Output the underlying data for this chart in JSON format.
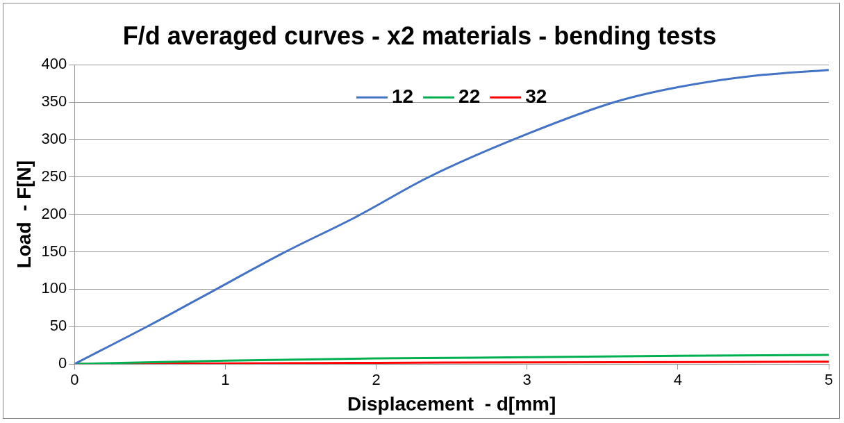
{
  "chart_data": {
    "type": "line",
    "title": "F/d averaged curves - x2 materials - bending tests",
    "xlabel": "Displacement  - d[mm]",
    "ylabel": "Load  - F[N]",
    "xlim": [
      0,
      5
    ],
    "xticks": [
      0,
      1,
      2,
      3,
      4,
      5
    ],
    "ylim": [
      0,
      400
    ],
    "yticks": [
      0,
      50,
      100,
      150,
      200,
      250,
      300,
      350,
      400
    ],
    "grid": "y",
    "legend": "top",
    "marker": "none",
    "line_style": "solid",
    "series": [
      {
        "name": "12",
        "color": "#4472c4",
        "x": [
          0,
          0.5,
          0.84,
          1.38,
          1.87,
          2.35,
          2.91,
          3.58,
          4,
          4.5,
          5
        ],
        "values": [
          0,
          52,
          89,
          148,
          197,
          250,
          300,
          350,
          370,
          385,
          393
        ]
      },
      {
        "name": "22",
        "color": "#00b050",
        "x": [
          0,
          1,
          2,
          3,
          4,
          5
        ],
        "values": [
          0,
          4.4,
          7.4,
          9,
          11,
          12
        ]
      },
      {
        "name": "32",
        "color": "#ff0000",
        "x": [
          0,
          2,
          3,
          5
        ],
        "values": [
          0,
          1.5,
          2,
          3
        ]
      }
    ]
  }
}
